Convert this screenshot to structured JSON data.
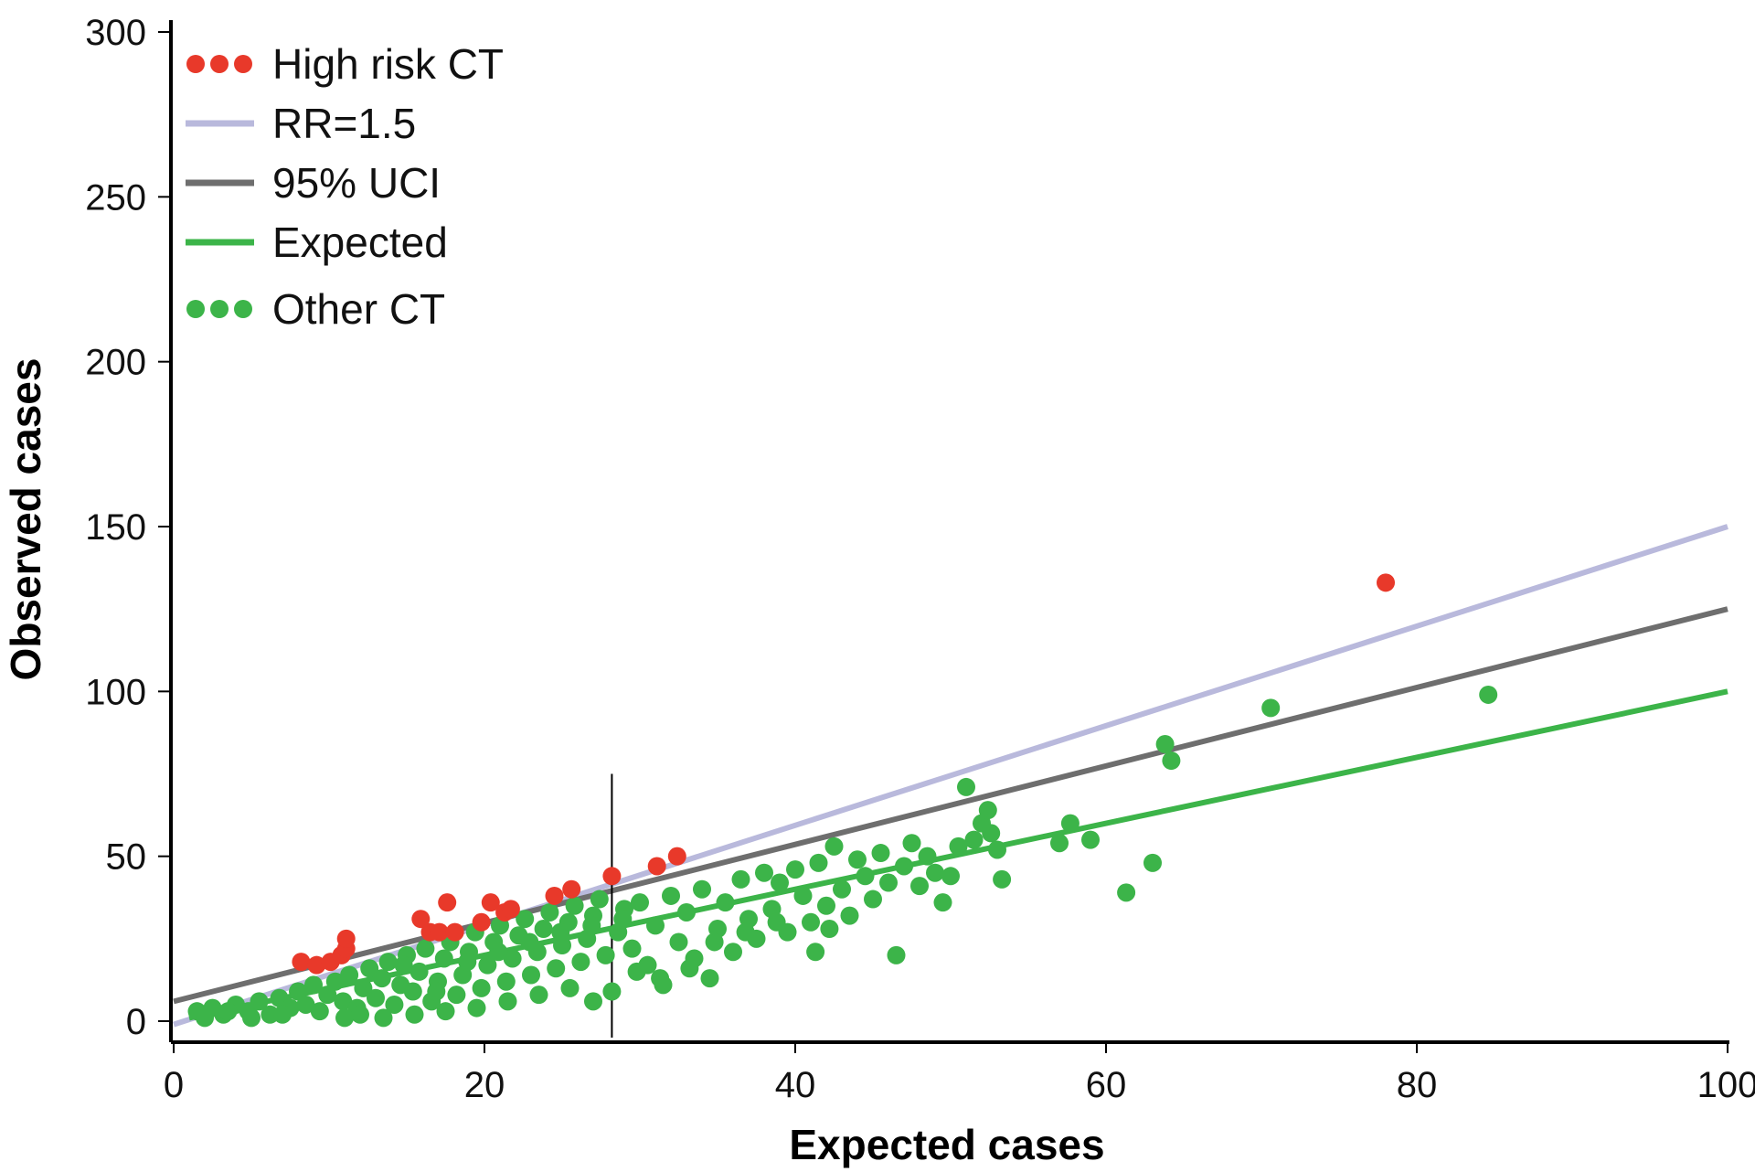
{
  "chart_data": {
    "type": "scatter",
    "title": "",
    "xlabel": "Expected cases",
    "ylabel": "Observed cases",
    "xlim": [
      0,
      100
    ],
    "ylim": [
      0,
      300
    ],
    "x_ticks": [
      "0",
      "20",
      "40",
      "60",
      "80",
      "100"
    ],
    "y_ticks": [
      "0",
      "50",
      "100",
      "150",
      "200",
      "250",
      "300"
    ],
    "grid": false,
    "legend_position": "top-left",
    "colors": {
      "high_risk": "#e8392a",
      "rr": "#b9b9dc",
      "uci": "#6e6e6e",
      "expected": "#3cb449",
      "other": "#3cb449",
      "threshold": "#000000"
    },
    "legend": [
      {
        "label": "High risk CT",
        "kind": "dots",
        "color_key": "high_risk"
      },
      {
        "label": "RR=1.5",
        "kind": "line",
        "color_key": "rr"
      },
      {
        "label": "95% UCI",
        "kind": "line",
        "color_key": "uci"
      },
      {
        "label": "Expected",
        "kind": "line",
        "color_key": "expected"
      },
      {
        "label": "Other CT",
        "kind": "dots",
        "color_key": "other"
      }
    ],
    "lines": [
      {
        "name": "RR=1.5",
        "color_key": "rr",
        "x": [
          0,
          100
        ],
        "y": [
          -1,
          150
        ]
      },
      {
        "name": "95% UCI",
        "color_key": "uci",
        "x": [
          0,
          100
        ],
        "y": [
          6,
          125
        ]
      },
      {
        "name": "Expected",
        "color_key": "expected",
        "x": [
          1,
          100
        ],
        "y": [
          1,
          100
        ]
      }
    ],
    "vertical_line": {
      "x": 28.2,
      "y_range": [
        -5,
        75
      ]
    },
    "series": [
      {
        "name": "High risk CT",
        "color_key": "high_risk",
        "points": [
          [
            8.2,
            18
          ],
          [
            9.2,
            17
          ],
          [
            10.1,
            18
          ],
          [
            10.8,
            20
          ],
          [
            11.1,
            22
          ],
          [
            11.1,
            25
          ],
          [
            15.9,
            31
          ],
          [
            16.5,
            27
          ],
          [
            17.1,
            27
          ],
          [
            17.6,
            36
          ],
          [
            18.1,
            27
          ],
          [
            19.8,
            30
          ],
          [
            20.4,
            36
          ],
          [
            21.3,
            33
          ],
          [
            21.7,
            34
          ],
          [
            24.5,
            38
          ],
          [
            25.6,
            40
          ],
          [
            28.2,
            44
          ],
          [
            31.1,
            47
          ],
          [
            32.4,
            50
          ],
          [
            78.0,
            133
          ]
        ]
      },
      {
        "name": "Other CT",
        "color_key": "other",
        "points": [
          [
            1.5,
            3
          ],
          [
            2.5,
            4
          ],
          [
            3.2,
            2
          ],
          [
            4.0,
            5
          ],
          [
            4.8,
            3
          ],
          [
            5.5,
            6
          ],
          [
            6.2,
            2
          ],
          [
            6.8,
            7
          ],
          [
            7.5,
            4
          ],
          [
            8.0,
            9
          ],
          [
            8.5,
            5
          ],
          [
            9.0,
            11
          ],
          [
            9.4,
            3
          ],
          [
            9.9,
            8
          ],
          [
            10.4,
            12
          ],
          [
            10.9,
            6
          ],
          [
            11.3,
            14
          ],
          [
            11.8,
            4
          ],
          [
            12.2,
            10
          ],
          [
            12.6,
            16
          ],
          [
            13.0,
            7
          ],
          [
            13.4,
            13
          ],
          [
            13.8,
            18
          ],
          [
            14.2,
            5
          ],
          [
            14.6,
            11
          ],
          [
            15.0,
            20
          ],
          [
            15.4,
            9
          ],
          [
            15.8,
            15
          ],
          [
            16.2,
            22
          ],
          [
            16.6,
            6
          ],
          [
            17.0,
            12
          ],
          [
            17.4,
            19
          ],
          [
            17.8,
            24
          ],
          [
            18.2,
            8
          ],
          [
            18.6,
            14
          ],
          [
            19.0,
            21
          ],
          [
            19.4,
            27
          ],
          [
            19.8,
            10
          ],
          [
            20.2,
            17
          ],
          [
            20.6,
            24
          ],
          [
            21.0,
            29
          ],
          [
            21.4,
            12
          ],
          [
            21.8,
            19
          ],
          [
            22.2,
            26
          ],
          [
            22.6,
            31
          ],
          [
            23.0,
            14
          ],
          [
            23.4,
            21
          ],
          [
            23.8,
            28
          ],
          [
            24.2,
            33
          ],
          [
            24.6,
            16
          ],
          [
            25.0,
            23
          ],
          [
            25.4,
            30
          ],
          [
            25.8,
            35
          ],
          [
            26.2,
            18
          ],
          [
            26.6,
            25
          ],
          [
            27.0,
            32
          ],
          [
            27.4,
            37
          ],
          [
            27.8,
            20
          ],
          [
            28.2,
            9
          ],
          [
            28.6,
            27
          ],
          [
            29.0,
            34
          ],
          [
            29.5,
            22
          ],
          [
            30.0,
            36
          ],
          [
            30.5,
            17
          ],
          [
            31.0,
            29
          ],
          [
            31.5,
            11
          ],
          [
            32.0,
            38
          ],
          [
            32.5,
            24
          ],
          [
            33.0,
            33
          ],
          [
            33.5,
            19
          ],
          [
            34.0,
            40
          ],
          [
            34.5,
            13
          ],
          [
            35.0,
            28
          ],
          [
            35.5,
            36
          ],
          [
            36.0,
            21
          ],
          [
            36.5,
            43
          ],
          [
            37.0,
            31
          ],
          [
            37.5,
            25
          ],
          [
            38.0,
            45
          ],
          [
            38.5,
            34
          ],
          [
            39.0,
            42
          ],
          [
            39.5,
            27
          ],
          [
            40.0,
            46
          ],
          [
            40.5,
            38
          ],
          [
            41.0,
            30
          ],
          [
            41.5,
            48
          ],
          [
            42.0,
            35
          ],
          [
            42.5,
            53
          ],
          [
            43.0,
            40
          ],
          [
            43.5,
            32
          ],
          [
            44.0,
            49
          ],
          [
            44.5,
            44
          ],
          [
            45.0,
            37
          ],
          [
            45.5,
            51
          ],
          [
            46.0,
            42
          ],
          [
            46.5,
            20
          ],
          [
            47.0,
            47
          ],
          [
            47.5,
            54
          ],
          [
            48.0,
            41
          ],
          [
            48.5,
            50
          ],
          [
            49.0,
            45
          ],
          [
            49.5,
            36
          ],
          [
            50.0,
            44
          ],
          [
            50.5,
            53
          ],
          [
            51.0,
            71
          ],
          [
            51.5,
            55
          ],
          [
            52.0,
            60
          ],
          [
            52.4,
            64
          ],
          [
            52.6,
            57
          ],
          [
            53.0,
            52
          ],
          [
            53.3,
            43
          ],
          [
            57.0,
            54
          ],
          [
            57.7,
            60
          ],
          [
            59.0,
            55
          ],
          [
            61.3,
            39
          ],
          [
            63.0,
            48
          ],
          [
            63.8,
            84
          ],
          [
            64.2,
            79
          ],
          [
            70.6,
            95
          ],
          [
            84.6,
            99
          ],
          [
            2.0,
            1
          ],
          [
            3.5,
            3
          ],
          [
            5.0,
            1
          ],
          [
            7.0,
            2
          ],
          [
            11.0,
            1
          ],
          [
            12.0,
            2
          ],
          [
            13.5,
            1
          ],
          [
            15.5,
            2
          ],
          [
            17.5,
            3
          ],
          [
            19.5,
            4
          ],
          [
            21.5,
            6
          ],
          [
            23.5,
            8
          ],
          [
            25.5,
            10
          ],
          [
            27.0,
            6
          ],
          [
            29.8,
            15
          ],
          [
            31.3,
            13
          ],
          [
            33.2,
            16
          ],
          [
            34.8,
            24
          ],
          [
            36.8,
            27
          ],
          [
            38.8,
            30
          ],
          [
            41.3,
            21
          ],
          [
            42.2,
            28
          ],
          [
            14.8,
            17
          ],
          [
            16.9,
            9
          ],
          [
            18.9,
            18
          ],
          [
            20.9,
            21
          ],
          [
            22.9,
            24
          ],
          [
            24.9,
            27
          ],
          [
            26.9,
            29
          ],
          [
            28.9,
            31
          ]
        ]
      }
    ]
  }
}
